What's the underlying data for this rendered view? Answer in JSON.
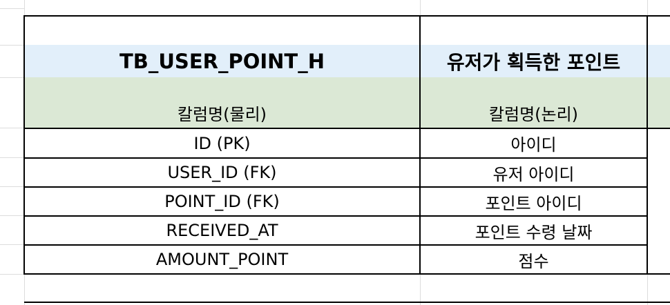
{
  "table": {
    "title": "TB_USER_POINT_H",
    "subtitle": "유저가 획득한 포인트",
    "header_physical": "칼럼명(물리)",
    "header_logical": "칼럼명(논리)",
    "rows": [
      {
        "physical": "ID (PK)",
        "logical": "아이디"
      },
      {
        "physical": "USER_ID (FK)",
        "logical": "유저 아이디"
      },
      {
        "physical": "POINT_ID (FK)",
        "logical": "포인트 아이디"
      },
      {
        "physical": "RECEIVED_AT",
        "logical": "포인트 수령 날짜"
      },
      {
        "physical": "AMOUNT_POINT",
        "logical": "점수"
      }
    ]
  },
  "colors": {
    "title_row_bg": "#e2effa",
    "header_row_bg": "#dbe8d5",
    "border": "#000000",
    "gridline": "#dcdcdc"
  }
}
